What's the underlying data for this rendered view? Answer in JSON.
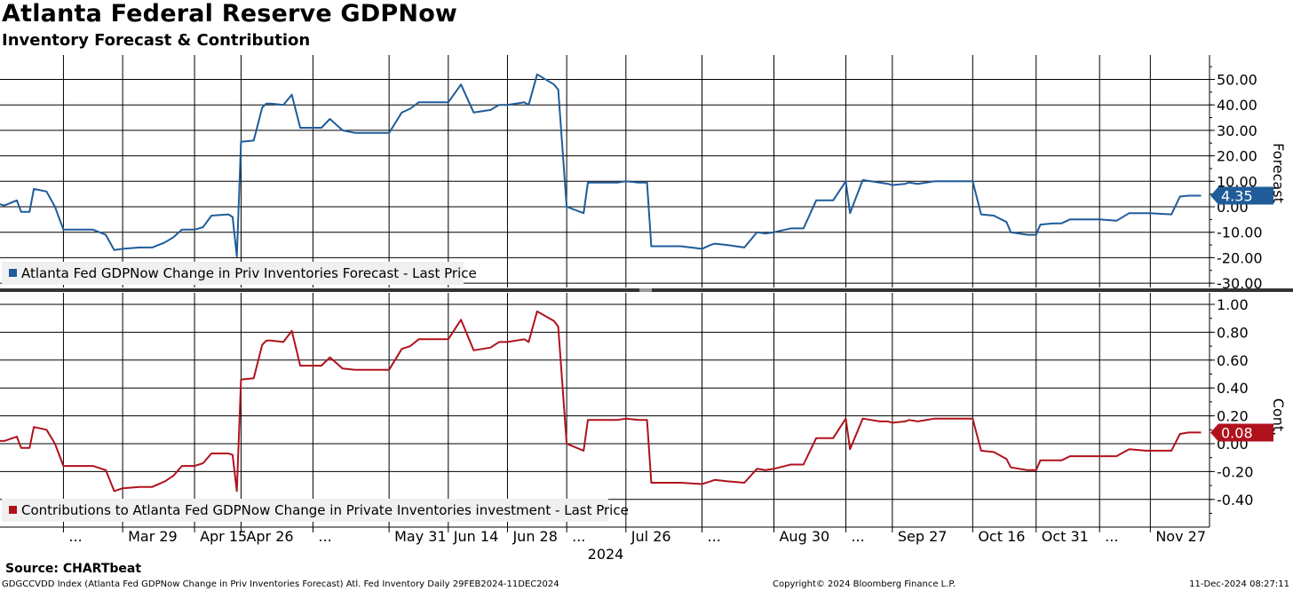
{
  "title": "Atlanta Federal Reserve GDPNow",
  "subtitle": "Inventory Forecast & Contribution",
  "source": "Source: CHARTbeat",
  "footer": {
    "left": "GDGCCVDD Index (Atlanta Fed GDPNow Change in Priv Inventories Forecast) Atl. Fed Inventory  Daily 29FEB2024-11DEC2024",
    "center": "Copyright© 2024 Bloomberg Finance L.P.",
    "right": "11-Dec-2024 08:27:11"
  },
  "colors": {
    "forecast": "#1f5c99",
    "contribution": "#b0121c",
    "badge_forecast": "#1f5c99",
    "badge_contribution": "#b0121c"
  },
  "chart_data": [
    {
      "type": "line",
      "panel": "top",
      "ylabel": "Forecast",
      "ylim": [
        -34,
        60
      ],
      "yticks": [
        50,
        40,
        30,
        20,
        10,
        0,
        -10,
        -20,
        -30
      ],
      "ytick_labels": [
        "50.00",
        "40.00",
        "30.00",
        "20.00",
        "10.00",
        "0.00",
        "-10.00",
        "-20.00",
        "-30.00"
      ],
      "last_value_label": "4.35",
      "legend": "Atlanta Fed GDPNow Change in Priv Inventories Forecast - Last Price",
      "series": [
        {
          "name": "Atlanta Fed GDPNow Change in Priv Inventories Forecast - Last Price",
          "x": [
            "2024-02-29",
            "2024-03-01",
            "2024-03-04",
            "2024-03-05",
            "2024-03-07",
            "2024-03-08",
            "2024-03-11",
            "2024-03-13",
            "2024-03-15",
            "2024-03-19",
            "2024-03-22",
            "2024-03-25",
            "2024-03-27",
            "2024-03-29",
            "2024-04-02",
            "2024-04-05",
            "2024-04-08",
            "2024-04-10",
            "2024-04-12",
            "2024-04-15",
            "2024-04-17",
            "2024-04-19",
            "2024-04-23",
            "2024-04-24",
            "2024-04-25",
            "2024-04-26",
            "2024-04-29",
            "2024-05-01",
            "2024-05-02",
            "2024-05-03",
            "2024-05-06",
            "2024-05-08",
            "2024-05-10",
            "2024-05-13",
            "2024-05-15",
            "2024-05-17",
            "2024-05-20",
            "2024-05-23",
            "2024-05-28",
            "2024-05-31",
            "2024-06-03",
            "2024-06-05",
            "2024-06-07",
            "2024-06-10",
            "2024-06-12",
            "2024-06-14",
            "2024-06-17",
            "2024-06-20",
            "2024-06-24",
            "2024-06-26",
            "2024-06-28",
            "2024-07-02",
            "2024-07-03",
            "2024-07-05",
            "2024-07-09",
            "2024-07-10",
            "2024-07-12",
            "2024-07-16",
            "2024-07-17",
            "2024-07-19",
            "2024-07-24",
            "2024-07-26",
            "2024-07-29",
            "2024-07-31",
            "2024-08-01",
            "2024-08-05",
            "2024-08-08",
            "2024-08-13",
            "2024-08-15",
            "2024-08-16",
            "2024-08-19",
            "2024-08-23",
            "2024-08-26",
            "2024-08-28",
            "2024-08-30",
            "2024-09-03",
            "2024-09-06",
            "2024-09-09",
            "2024-09-10",
            "2024-09-13",
            "2024-09-16",
            "2024-09-17",
            "2024-09-20",
            "2024-09-24",
            "2024-09-26",
            "2024-09-27",
            "2024-09-30",
            "2024-10-01",
            "2024-10-03",
            "2024-10-07",
            "2024-10-09",
            "2024-10-10",
            "2024-10-16",
            "2024-10-18",
            "2024-10-21",
            "2024-10-24",
            "2024-10-25",
            "2024-10-29",
            "2024-10-31",
            "2024-11-01",
            "2024-11-04",
            "2024-11-06",
            "2024-11-08",
            "2024-11-13",
            "2024-11-15",
            "2024-11-19",
            "2024-11-22",
            "2024-11-26",
            "2024-11-27",
            "2024-12-02",
            "2024-12-04",
            "2024-12-06",
            "2024-12-09"
          ],
          "values": [
            1.0,
            0.5,
            2.5,
            -2.0,
            -2.0,
            7.0,
            6.0,
            0.0,
            -9.0,
            -9.0,
            -9.0,
            -11.0,
            -17.0,
            -16.5,
            -16.0,
            -16.0,
            -14.0,
            -12.0,
            -9.0,
            -9.0,
            -8.0,
            -3.5,
            -3.0,
            -4.0,
            -19.5,
            25.5,
            26.0,
            39.0,
            40.5,
            40.5,
            40.0,
            44.0,
            31.0,
            31.0,
            31.0,
            34.5,
            30.0,
            29.0,
            29.0,
            29.0,
            37.0,
            38.5,
            41.0,
            41.0,
            41.0,
            41.0,
            48.0,
            37.0,
            38.0,
            40.0,
            40.0,
            41.0,
            40.0,
            52.0,
            48.0,
            46.0,
            0.0,
            -2.5,
            9.5,
            9.5,
            9.5,
            10.0,
            9.5,
            9.5,
            -15.5,
            -15.5,
            -15.5,
            -16.5,
            -15.0,
            -14.5,
            -15.0,
            -16.0,
            -10.0,
            -10.5,
            -10.0,
            -8.5,
            -8.5,
            2.5,
            2.5,
            2.5,
            10.0,
            -2.5,
            10.5,
            9.5,
            9.0,
            8.5,
            9.0,
            9.5,
            9.0,
            10.0,
            10.0,
            10.0,
            10.0,
            -3.0,
            -3.5,
            -6.0,
            -10.0,
            -11.0,
            -11.0,
            -7.0,
            -6.5,
            -6.5,
            -5.0,
            -5.0,
            -5.0,
            -5.5,
            -2.5,
            -2.5,
            -2.5,
            -3.0,
            4.0,
            4.35,
            4.35
          ]
        }
      ]
    },
    {
      "type": "line",
      "panel": "bottom",
      "ylabel": "Cont.",
      "ylim": [
        -0.6,
        1.05
      ],
      "yticks": [
        1.0,
        0.8,
        0.6,
        0.4,
        0.2,
        0.0,
        -0.2,
        -0.4
      ],
      "ytick_labels": [
        "1.00",
        "0.80",
        "0.60",
        "0.40",
        "0.20",
        "0.00",
        "-0.20",
        "-0.40"
      ],
      "last_value_label": "0.08",
      "legend": "Contributions to Atlanta Fed GDPNow Change in Private Inventories investment - Last Price",
      "series": [
        {
          "name": "Contributions to Atlanta Fed GDPNow Change in Private Inventories investment - Last Price",
          "values": [
            0.02,
            0.02,
            0.05,
            -0.03,
            -0.03,
            0.12,
            0.1,
            0.0,
            -0.16,
            -0.16,
            -0.16,
            -0.19,
            -0.34,
            -0.32,
            -0.31,
            -0.31,
            -0.27,
            -0.23,
            -0.16,
            -0.16,
            -0.14,
            -0.07,
            -0.07,
            -0.08,
            -0.34,
            0.46,
            0.47,
            0.71,
            0.74,
            0.74,
            0.73,
            0.81,
            0.56,
            0.56,
            0.56,
            0.62,
            0.54,
            0.53,
            0.53,
            0.53,
            0.68,
            0.7,
            0.75,
            0.75,
            0.75,
            0.75,
            0.89,
            0.67,
            0.69,
            0.73,
            0.73,
            0.75,
            0.73,
            0.95,
            0.88,
            0.84,
            0.0,
            -0.05,
            0.17,
            0.17,
            0.17,
            0.18,
            0.17,
            0.17,
            -0.28,
            -0.28,
            -0.28,
            -0.29,
            -0.27,
            -0.26,
            -0.27,
            -0.28,
            -0.18,
            -0.19,
            -0.18,
            -0.15,
            -0.15,
            0.04,
            0.04,
            0.04,
            0.18,
            -0.04,
            0.18,
            0.16,
            0.16,
            0.15,
            0.16,
            0.17,
            0.16,
            0.18,
            0.18,
            0.18,
            0.18,
            -0.05,
            -0.06,
            -0.11,
            -0.17,
            -0.19,
            -0.19,
            -0.12,
            -0.12,
            -0.12,
            -0.09,
            -0.09,
            -0.09,
            -0.09,
            -0.04,
            -0.05,
            -0.05,
            -0.05,
            0.07,
            0.08,
            0.08
          ]
        }
      ]
    }
  ],
  "x_axis": {
    "tick_labels": [
      "...",
      "Mar 29",
      "Apr 15",
      "Apr 26",
      "...",
      "May 31",
      "Jun 14",
      "Jun 28",
      "...",
      "Jul 26",
      "...",
      "Aug 30",
      "...",
      "Sep 27",
      "Oct 16",
      "Oct 31",
      "...",
      "Nov 27"
    ],
    "tick_dates": [
      "2024-03-15",
      "2024-03-29",
      "2024-04-15",
      "2024-04-26",
      "2024-05-13",
      "2024-05-31",
      "2024-06-14",
      "2024-06-28",
      "2024-07-12",
      "2024-07-26",
      "2024-08-13",
      "2024-08-30",
      "2024-09-16",
      "2024-09-27",
      "2024-10-16",
      "2024-10-31",
      "2024-11-15",
      "2024-11-27"
    ],
    "year_label": "2024",
    "range": [
      "2024-02-29",
      "2024-12-11"
    ]
  }
}
